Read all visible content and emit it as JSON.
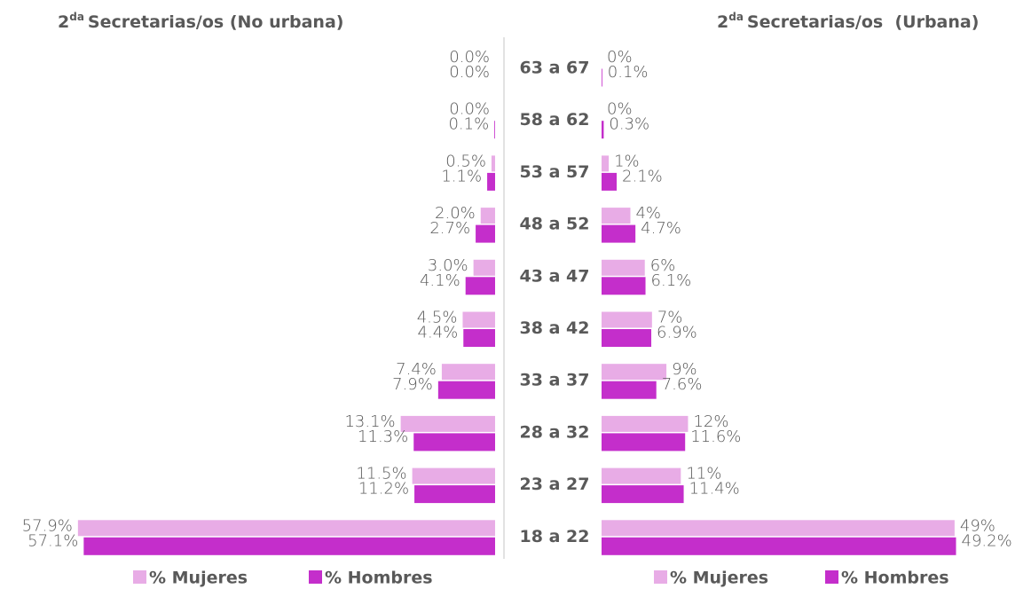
{
  "chart_data": [
    {
      "type": "bar",
      "orientation": "horizontal",
      "direction": "left",
      "title_number": "2",
      "title_sup": "da",
      "title": "Secretarias/os (No urbana)",
      "categories": [
        "63 a 67",
        "58 a 62",
        "53 a 57",
        "48 a 52",
        "43 a 47",
        "38 a 42",
        "33 a 37",
        "28 a 32",
        "23 a 27",
        "18 a 22"
      ],
      "series": [
        {
          "name": "% Mujeres",
          "color": "#e8ace6",
          "values": [
            0.0,
            0.0,
            0.5,
            2.0,
            3.0,
            4.5,
            7.4,
            13.1,
            11.5,
            57.9
          ],
          "value_labels": [
            "0.0%",
            "0.0%",
            "0.5%",
            "2.0%",
            "3.0%",
            "4.5%",
            "7.4%",
            "13.1%",
            "11.5%",
            "57.9%"
          ]
        },
        {
          "name": "% Hombres",
          "color": "#c42ecb",
          "values": [
            0.0,
            0.1,
            1.1,
            2.7,
            4.1,
            4.4,
            7.9,
            11.3,
            11.2,
            57.1
          ],
          "value_labels": [
            "0.0%",
            "0.1%",
            "1.1%",
            "2.7%",
            "4.1%",
            "4.4%",
            "7.9%",
            "11.3%",
            "11.2%",
            "57.1%"
          ]
        }
      ]
    },
    {
      "type": "bar",
      "orientation": "horizontal",
      "direction": "right",
      "title_number": "2",
      "title_sup": "da",
      "title": "Secretarias/os  (Urbana)",
      "series": [
        {
          "name": "% Mujeres",
          "color": "#e8ace6",
          "values": [
            0,
            0,
            1,
            4,
            6,
            7,
            9,
            12,
            11,
            49
          ],
          "value_labels": [
            "0%",
            "0%",
            "1%",
            "4%",
            "6%",
            "7%",
            "9%",
            "12%",
            "11%",
            "49%"
          ]
        },
        {
          "name": "% Hombres",
          "color": "#c42ecb",
          "values": [
            0.1,
            0.3,
            2.1,
            4.7,
            6.1,
            6.9,
            7.6,
            11.6,
            11.4,
            49.2
          ],
          "value_labels": [
            "0.1%",
            "0.3%",
            "2.1%",
            "4.7%",
            "6.1%",
            "6.9%",
            "7.6%",
            "11.6%",
            "11.4%",
            "49.2%"
          ]
        }
      ]
    }
  ]
}
